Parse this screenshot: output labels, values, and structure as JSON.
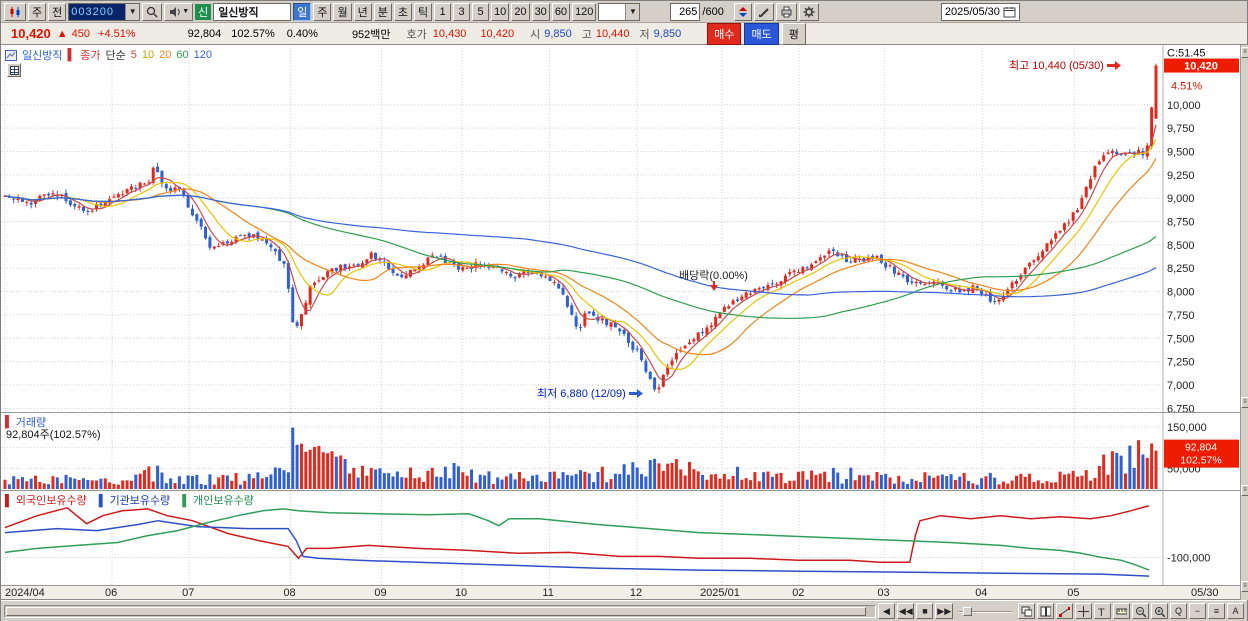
{
  "colors": {
    "up": "#e02a1e",
    "down": "#2f5fd0",
    "ma5": "#c84b4b",
    "ma10": "#e8c400",
    "ma20": "#f08418",
    "ma60": "#2f9e52",
    "ma120": "#3a62d9",
    "foreign": "#cc1a1a",
    "inst": "#2f4fc8",
    "indiv": "#2f9e5a",
    "price_box": "#ee1c00",
    "grid": "#d4d4d4"
  },
  "toolbar_top": {
    "btn_week": "주",
    "btn_prev": "전",
    "code": "003200",
    "badge": "신",
    "stock_name": "일신방직",
    "periods": [
      "일",
      "주",
      "월",
      "년",
      "분",
      "초",
      "틱"
    ],
    "intervals": [
      "1",
      "3",
      "5",
      "10",
      "20",
      "30",
      "60",
      "120"
    ],
    "bar_count": "265",
    "bar_total": "/600",
    "date": "2025/05/30",
    "dropdown_arrow": "▼"
  },
  "price_bar": {
    "price": "10,420",
    "arrow": "▲",
    "change": "450",
    "change_pct": "+4.51%",
    "volume": "92,804",
    "vol_ratio": "102.57%",
    "turnover": "0.40%",
    "amount": "952백만",
    "hoga_l": "호가",
    "ask": "10,430",
    "bid": "10,420",
    "open_l": "시",
    "open": "9,850",
    "high_l": "고",
    "high": "10,440",
    "low_l": "저",
    "low": "9,850",
    "buy": "매수",
    "sell": "매도",
    "avg": "평"
  },
  "main_legend": {
    "name": "일신방직",
    "mark": "▌",
    "close_l": "종가",
    "simple_l": "단순",
    "ma": [
      "5",
      "10",
      "20",
      "60",
      "120"
    ]
  },
  "annotations": {
    "high": "최고 10,440 (05/30)",
    "low": "최저 6,880 (12/09)",
    "dividend": "배당락(0.00%)"
  },
  "right_axis": {
    "c_label": "C:51.45",
    "price": "10,420",
    "pct": "4.51%"
  },
  "vol_legend": {
    "mark": "▌",
    "title": "거래량",
    "detail": "92,804주(102.57%)"
  },
  "vol_axis": {
    "box_line1": "92,804",
    "box_line2": "102.57%"
  },
  "hold_legend": [
    {
      "mark": "▌",
      "label": "외국인보유수량"
    },
    {
      "mark": "▌",
      "label": "기관보유수량"
    },
    {
      "mark": "▌",
      "label": "개인보유수량"
    }
  ],
  "bottom": {
    "nav": [
      "◀",
      "◀◀",
      "■",
      "▶▶"
    ],
    "text_buttons": [
      "Q",
      "−",
      "≡",
      "A"
    ]
  },
  "rstrip_glyph": "≡",
  "chart_data": {
    "type": "candlestick",
    "bars": 265,
    "ylim": [
      6700,
      10640
    ],
    "yticks": [
      [
        "10,000",
        10000
      ],
      [
        "9,750",
        9750
      ],
      [
        "9,500",
        9500
      ],
      [
        "9,250",
        9250
      ],
      [
        "9,000",
        9000
      ],
      [
        "8,750",
        8750
      ],
      [
        "8,500",
        8500
      ],
      [
        "8,250",
        8250
      ],
      [
        "8,000",
        8000
      ],
      [
        "7,750",
        7750
      ],
      [
        "7,500",
        7500
      ],
      [
        "7,250",
        7250
      ],
      [
        "7,000",
        7000
      ],
      [
        "6,750",
        6750
      ]
    ],
    "last_bar": {
      "open": 9850,
      "high": 10440,
      "low": 9850,
      "close": 10420
    },
    "prev_close": 9970,
    "seed": 424242,
    "price_anchors": [
      [
        0,
        9050
      ],
      [
        0.019,
        8950
      ],
      [
        0.045,
        9050
      ],
      [
        0.071,
        8850
      ],
      [
        0.089,
        8980
      ],
      [
        0.106,
        9100
      ],
      [
        0.124,
        9150
      ],
      [
        0.13,
        9380
      ],
      [
        0.137,
        9150
      ],
      [
        0.154,
        9050
      ],
      [
        0.167,
        8750
      ],
      [
        0.18,
        8450
      ],
      [
        0.198,
        8550
      ],
      [
        0.215,
        8600
      ],
      [
        0.233,
        8450
      ],
      [
        0.244,
        8250
      ],
      [
        0.251,
        7550
      ],
      [
        0.257,
        7750
      ],
      [
        0.265,
        8050
      ],
      [
        0.274,
        8150
      ],
      [
        0.289,
        8250
      ],
      [
        0.307,
        8300
      ],
      [
        0.32,
        8400
      ],
      [
        0.333,
        8230
      ],
      [
        0.346,
        8180
      ],
      [
        0.359,
        8250
      ],
      [
        0.372,
        8420
      ],
      [
        0.385,
        8300
      ],
      [
        0.398,
        8230
      ],
      [
        0.412,
        8300
      ],
      [
        0.425,
        8250
      ],
      [
        0.442,
        8170
      ],
      [
        0.455,
        8220
      ],
      [
        0.468,
        8180
      ],
      [
        0.481,
        8050
      ],
      [
        0.492,
        7750
      ],
      [
        0.499,
        7600
      ],
      [
        0.506,
        7800
      ],
      [
        0.516,
        7700
      ],
      [
        0.529,
        7650
      ],
      [
        0.541,
        7480
      ],
      [
        0.551,
        7320
      ],
      [
        0.56,
        7080
      ],
      [
        0.566,
        6920
      ],
      [
        0.574,
        7180
      ],
      [
        0.584,
        7380
      ],
      [
        0.596,
        7480
      ],
      [
        0.608,
        7580
      ],
      [
        0.619,
        7750
      ],
      [
        0.634,
        7900
      ],
      [
        0.649,
        8000
      ],
      [
        0.664,
        8080
      ],
      [
        0.682,
        8180
      ],
      [
        0.699,
        8300
      ],
      [
        0.717,
        8430
      ],
      [
        0.73,
        8350
      ],
      [
        0.745,
        8320
      ],
      [
        0.758,
        8350
      ],
      [
        0.771,
        8230
      ],
      [
        0.785,
        8080
      ],
      [
        0.797,
        8120
      ],
      [
        0.813,
        8060
      ],
      [
        0.828,
        8020
      ],
      [
        0.843,
        8040
      ],
      [
        0.858,
        7880
      ],
      [
        0.869,
        8000
      ],
      [
        0.881,
        8150
      ],
      [
        0.893,
        8350
      ],
      [
        0.905,
        8500
      ],
      [
        0.917,
        8650
      ],
      [
        0.93,
        8850
      ],
      [
        0.941,
        9150
      ],
      [
        0.95,
        9400
      ],
      [
        0.961,
        9500
      ],
      [
        0.971,
        9440
      ],
      [
        0.982,
        9500
      ],
      [
        0.99,
        9480
      ],
      [
        0.996,
        9700
      ],
      [
        1,
        10420
      ]
    ],
    "months": [
      [
        "2024/04",
        0
      ],
      [
        "06",
        0.093
      ],
      [
        "07",
        0.16
      ],
      [
        "08",
        0.248
      ],
      [
        "09",
        0.327
      ],
      [
        "10",
        0.397
      ],
      [
        "11",
        0.473
      ],
      [
        "12",
        0.549
      ],
      [
        "2025/01",
        0.623
      ],
      [
        "02",
        0.69
      ],
      [
        "03",
        0.764
      ],
      [
        "04",
        0.849
      ],
      [
        "05",
        0.929
      ]
    ],
    "end_label": "05/30",
    "volume": {
      "vmax": 175000,
      "yticks": [
        [
          "150,000",
          150000
        ],
        [
          "100,000",
          100000
        ],
        [
          "50,000",
          50000
        ]
      ],
      "last": 92804,
      "base_anchors": [
        [
          0,
          20000
        ],
        [
          0.05,
          22000
        ],
        [
          0.09,
          18000
        ],
        [
          0.12,
          35000
        ],
        [
          0.13,
          45000
        ],
        [
          0.14,
          25000
        ],
        [
          0.16,
          22000
        ],
        [
          0.2,
          25000
        ],
        [
          0.23,
          28000
        ],
        [
          0.245,
          55000
        ],
        [
          0.249,
          160000
        ],
        [
          0.253,
          120000
        ],
        [
          0.258,
          95000
        ],
        [
          0.265,
          110000
        ],
        [
          0.272,
          80000
        ],
        [
          0.285,
          60000
        ],
        [
          0.3,
          40000
        ],
        [
          0.33,
          30000
        ],
        [
          0.36,
          35000
        ],
        [
          0.385,
          50000
        ],
        [
          0.4,
          30000
        ],
        [
          0.43,
          28000
        ],
        [
          0.46,
          25000
        ],
        [
          0.49,
          30000
        ],
        [
          0.52,
          35000
        ],
        [
          0.545,
          40000
        ],
        [
          0.56,
          60000
        ],
        [
          0.575,
          50000
        ],
        [
          0.6,
          40000
        ],
        [
          0.63,
          35000
        ],
        [
          0.66,
          30000
        ],
        [
          0.69,
          28000
        ],
        [
          0.72,
          32000
        ],
        [
          0.75,
          35000
        ],
        [
          0.78,
          30000
        ],
        [
          0.81,
          26000
        ],
        [
          0.84,
          24000
        ],
        [
          0.87,
          28000
        ],
        [
          0.9,
          26000
        ],
        [
          0.92,
          30000
        ],
        [
          0.94,
          45000
        ],
        [
          0.955,
          60000
        ],
        [
          0.97,
          55000
        ],
        [
          0.985,
          80000
        ],
        [
          1,
          92804
        ]
      ]
    },
    "holdings": {
      "ytick_label": "-100,000",
      "ytick_frac": 0.7,
      "series": [
        {
          "name": "foreign",
          "points": [
            [
              0,
              0.385
            ],
            [
              0.028,
              0.26
            ],
            [
              0.054,
              0.177
            ],
            [
              0.071,
              0.344
            ],
            [
              0.085,
              0.26
            ],
            [
              0.102,
              0.208
            ],
            [
              0.124,
              0.188
            ],
            [
              0.141,
              0.26
            ],
            [
              0.163,
              0.313
            ],
            [
              0.194,
              0.448
            ],
            [
              0.22,
              0.521
            ],
            [
              0.246,
              0.583
            ],
            [
              0.255,
              0.708
            ],
            [
              0.262,
              0.604
            ],
            [
              0.281,
              0.604
            ],
            [
              0.316,
              0.573
            ],
            [
              0.359,
              0.604
            ],
            [
              0.403,
              0.625
            ],
            [
              0.446,
              0.656
            ],
            [
              0.49,
              0.646
            ],
            [
              0.534,
              0.688
            ],
            [
              0.568,
              0.688
            ],
            [
              0.603,
              0.708
            ],
            [
              0.647,
              0.708
            ],
            [
              0.69,
              0.729
            ],
            [
              0.734,
              0.729
            ],
            [
              0.76,
              0.75
            ],
            [
              0.786,
              0.75
            ],
            [
              0.791,
              0.469
            ],
            [
              0.795,
              0.313
            ],
            [
              0.813,
              0.26
            ],
            [
              0.839,
              0.292
            ],
            [
              0.865,
              0.26
            ],
            [
              0.891,
              0.292
            ],
            [
              0.917,
              0.271
            ],
            [
              0.943,
              0.292
            ],
            [
              0.961,
              0.26
            ],
            [
              0.978,
              0.208
            ],
            [
              0.994,
              0.156
            ]
          ]
        },
        {
          "name": "inst",
          "points": [
            [
              0,
              0.438
            ],
            [
              0.045,
              0.396
            ],
            [
              0.08,
              0.417
            ],
            [
              0.115,
              0.354
            ],
            [
              0.133,
              0.313
            ],
            [
              0.167,
              0.375
            ],
            [
              0.211,
              0.396
            ],
            [
              0.246,
              0.396
            ],
            [
              0.253,
              0.521
            ],
            [
              0.259,
              0.688
            ],
            [
              0.272,
              0.708
            ],
            [
              0.307,
              0.729
            ],
            [
              0.359,
              0.75
            ],
            [
              0.412,
              0.771
            ],
            [
              0.464,
              0.792
            ],
            [
              0.516,
              0.813
            ],
            [
              0.603,
              0.833
            ],
            [
              0.69,
              0.844
            ],
            [
              0.778,
              0.854
            ],
            [
              0.865,
              0.865
            ],
            [
              0.952,
              0.875
            ],
            [
              0.994,
              0.896
            ]
          ]
        },
        {
          "name": "indiv",
          "points": [
            [
              0,
              0.646
            ],
            [
              0.028,
              0.604
            ],
            [
              0.063,
              0.573
            ],
            [
              0.098,
              0.542
            ],
            [
              0.124,
              0.469
            ],
            [
              0.15,
              0.417
            ],
            [
              0.176,
              0.333
            ],
            [
              0.202,
              0.26
            ],
            [
              0.224,
              0.208
            ],
            [
              0.242,
              0.188
            ],
            [
              0.255,
              0.208
            ],
            [
              0.281,
              0.229
            ],
            [
              0.324,
              0.24
            ],
            [
              0.368,
              0.25
            ],
            [
              0.403,
              0.24
            ],
            [
              0.42,
              0.313
            ],
            [
              0.429,
              0.365
            ],
            [
              0.438,
              0.292
            ],
            [
              0.464,
              0.292
            ],
            [
              0.516,
              0.354
            ],
            [
              0.56,
              0.396
            ],
            [
              0.603,
              0.438
            ],
            [
              0.647,
              0.458
            ],
            [
              0.69,
              0.479
            ],
            [
              0.734,
              0.5
            ],
            [
              0.778,
              0.521
            ],
            [
              0.821,
              0.542
            ],
            [
              0.865,
              0.573
            ],
            [
              0.891,
              0.604
            ],
            [
              0.917,
              0.625
            ],
            [
              0.935,
              0.656
            ],
            [
              0.952,
              0.698
            ],
            [
              0.97,
              0.729
            ],
            [
              0.983,
              0.781
            ],
            [
              0.994,
              0.833
            ]
          ]
        }
      ]
    }
  }
}
